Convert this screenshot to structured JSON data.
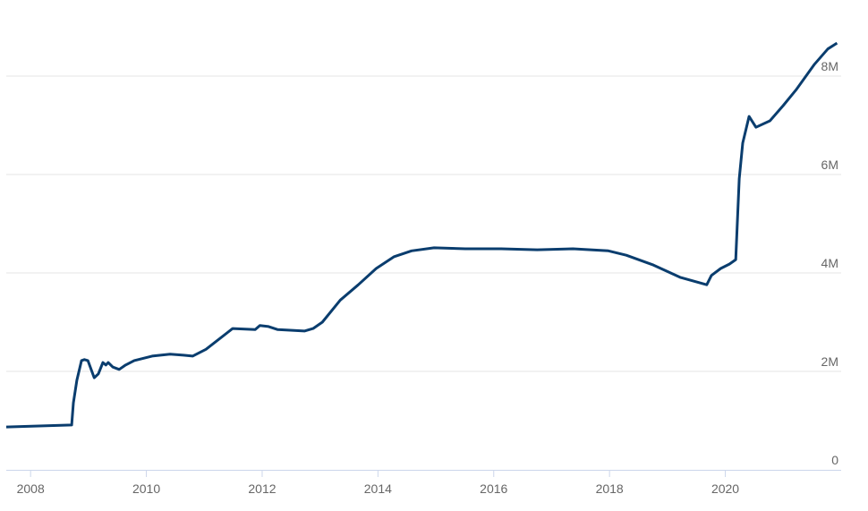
{
  "chart_data": {
    "type": "line",
    "x": [
      2007.58,
      2008.71,
      2008.74,
      2008.8,
      2008.88,
      2008.93,
      2008.99,
      2009.1,
      2009.17,
      2009.25,
      2009.3,
      2009.34,
      2009.42,
      2009.53,
      2009.64,
      2009.79,
      2010.1,
      2010.41,
      2010.64,
      2010.8,
      2011.03,
      2011.49,
      2011.88,
      2011.96,
      2012.11,
      2012.27,
      2012.73,
      2012.88,
      2013.04,
      2013.35,
      2013.66,
      2013.97,
      2014.28,
      2014.58,
      2014.97,
      2015.51,
      2016.13,
      2016.75,
      2017.37,
      2017.98,
      2018.29,
      2018.76,
      2019.22,
      2019.68,
      2019.76,
      2019.92,
      2020.07,
      2020.18,
      2020.24,
      2020.3,
      2020.41,
      2020.53,
      2020.77,
      2021.0,
      2021.23,
      2021.54,
      2021.77,
      2021.93
    ],
    "series": [
      {
        "color": "#0a3d6e",
        "values": [
          0.87,
          0.91,
          1.36,
          1.82,
          2.22,
          2.24,
          2.22,
          1.87,
          1.95,
          2.18,
          2.13,
          2.18,
          2.09,
          2.04,
          2.13,
          2.22,
          2.31,
          2.35,
          2.33,
          2.31,
          2.45,
          2.87,
          2.85,
          2.93,
          2.91,
          2.85,
          2.82,
          2.87,
          3.0,
          3.45,
          3.76,
          4.09,
          4.33,
          4.45,
          4.51,
          4.49,
          4.49,
          4.47,
          4.49,
          4.45,
          4.36,
          4.16,
          3.91,
          3.76,
          3.95,
          4.09,
          4.18,
          4.27,
          5.91,
          6.64,
          7.18,
          6.96,
          7.09,
          7.4,
          7.73,
          8.24,
          8.55,
          8.67
        ]
      }
    ],
    "xlim": [
      2007.58,
      2021.97
    ],
    "xticks": [
      2008,
      2010,
      2012,
      2014,
      2016,
      2018,
      2020
    ],
    "ylim": [
      0,
      9.2
    ],
    "yticks": [
      0,
      {
        "value": 2,
        "label": "2M"
      },
      {
        "value": 4,
        "label": "4M"
      },
      {
        "value": 6,
        "label": "6M"
      },
      {
        "value": 8,
        "label": "8M"
      }
    ],
    "grid": true
  }
}
